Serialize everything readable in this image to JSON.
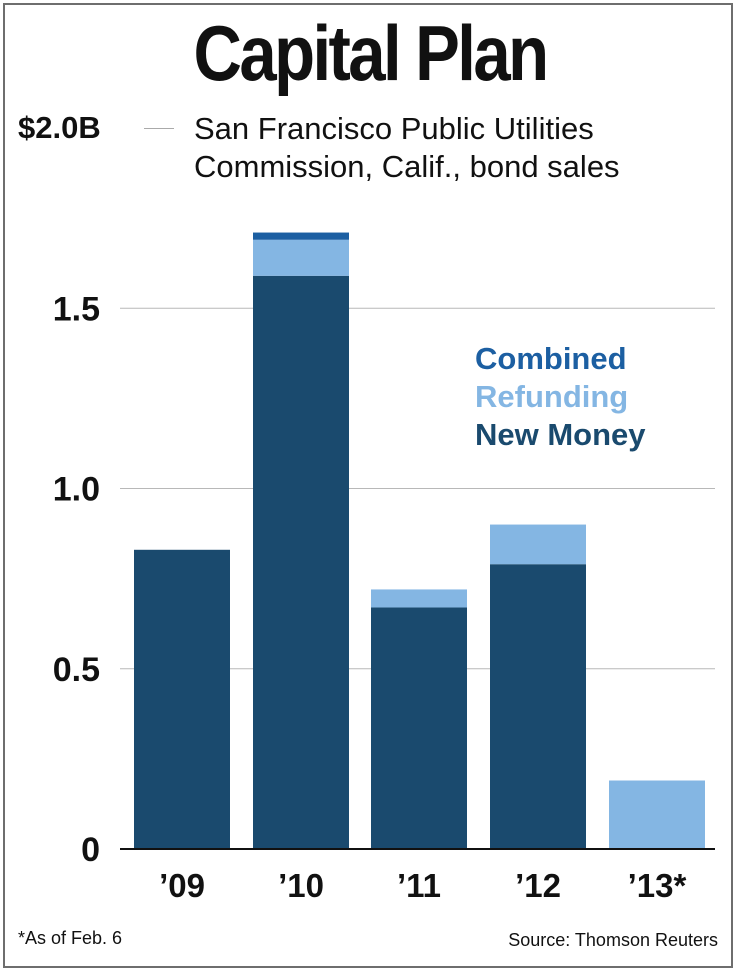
{
  "chart_data": {
    "type": "bar",
    "stacked": true,
    "title": "Capital Plan",
    "subtitle_lines": [
      "San Francisco Public Utilities",
      "Commission, Calif., bond sales"
    ],
    "ymax_label": "$2.0B",
    "categories": [
      "’09",
      "’10",
      "’11",
      "’12",
      "’13*"
    ],
    "series": [
      {
        "name": "New Money",
        "color": "#1a4a6e",
        "values": [
          0.83,
          1.59,
          0.67,
          0.79,
          0.0
        ]
      },
      {
        "name": "Refunding",
        "color": "#84b6e3",
        "values": [
          0.0,
          0.1,
          0.05,
          0.11,
          0.19
        ]
      },
      {
        "name": "Combined",
        "color": "#1c5fa2",
        "values": [
          0.0,
          0.02,
          0.0,
          0.0,
          0.0
        ]
      }
    ],
    "legend_order": [
      "Combined",
      "Refunding",
      "New Money"
    ],
    "yticks": [
      {
        "value": 0,
        "label": "0"
      },
      {
        "value": 0.5,
        "label": "0.5"
      },
      {
        "value": 1.0,
        "label": "1.0"
      },
      {
        "value": 1.5,
        "label": "1.5"
      },
      {
        "value": 2.0,
        "label": ""
      }
    ],
    "ylim": [
      0,
      2.0
    ],
    "grid": true,
    "legend_position": "top-right",
    "footnote": "*As of Feb. 6",
    "source": "Source: Thomson Reuters"
  }
}
